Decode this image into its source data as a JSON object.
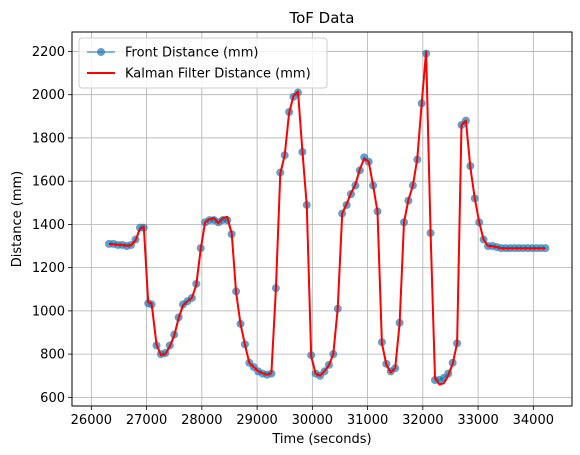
{
  "chart_data": {
    "type": "line",
    "title": "ToF Data",
    "xlabel": "Time (seconds)",
    "ylabel": "Distance (mm)",
    "xlim": [
      25650,
      34700
    ],
    "ylim": [
      560,
      2290
    ],
    "xticks": [
      26000,
      27000,
      28000,
      29000,
      30000,
      31000,
      32000,
      33000,
      34000
    ],
    "yticks": [
      600,
      800,
      1000,
      1200,
      1400,
      1600,
      1800,
      2000,
      2200
    ],
    "grid": true,
    "legend_position": "top-left",
    "series": [
      {
        "name": "Front Distance (mm)",
        "style": "line-markers",
        "color": "#1f77b4",
        "x": [
          26320,
          26400,
          26480,
          26560,
          26640,
          26720,
          26800,
          26880,
          26950,
          27030,
          27090,
          27180,
          27260,
          27340,
          27420,
          27500,
          27580,
          27660,
          27740,
          27820,
          27900,
          27980,
          28060,
          28140,
          28220,
          28300,
          28380,
          28460,
          28540,
          28620,
          28700,
          28780,
          28860,
          28940,
          29020,
          29100,
          29180,
          29260,
          29340,
          29420,
          29500,
          29580,
          29660,
          29740,
          29820,
          29900,
          29980,
          30060,
          30140,
          30220,
          30300,
          30380,
          30460,
          30540,
          30620,
          30700,
          30780,
          30860,
          30940,
          31020,
          31100,
          31180,
          31260,
          31340,
          31420,
          31500,
          31580,
          31660,
          31740,
          31820,
          31900,
          31980,
          32060,
          32140,
          32220,
          32300,
          32380,
          32460,
          32540,
          32620,
          32700,
          32780,
          32860,
          32940,
          33020,
          33100,
          33180,
          33260,
          33340,
          33420,
          33500,
          33580,
          33660,
          33740,
          33820,
          33900,
          33980,
          34060,
          34140,
          34220
        ],
        "y": [
          1310,
          1310,
          1305,
          1305,
          1300,
          1305,
          1330,
          1385,
          1385,
          1035,
          1030,
          840,
          800,
          805,
          840,
          890,
          970,
          1030,
          1045,
          1060,
          1125,
          1290,
          1410,
          1420,
          1420,
          1410,
          1420,
          1420,
          1355,
          1090,
          940,
          845,
          760,
          740,
          720,
          710,
          705,
          710,
          1105,
          1640,
          1720,
          1920,
          1990,
          2010,
          1735,
          1490,
          795,
          710,
          700,
          720,
          750,
          800,
          1010,
          1450,
          1490,
          1540,
          1580,
          1650,
          1710,
          1690,
          1580,
          1460,
          855,
          755,
          720,
          735,
          945,
          1410,
          1510,
          1580,
          1700,
          1960,
          2190,
          1360,
          680,
          680,
          690,
          710,
          760,
          850,
          1860,
          1880,
          1670,
          1520,
          1410,
          1330,
          1300,
          1300,
          1295,
          1290,
          1290,
          1290,
          1290,
          1290,
          1290,
          1290,
          1290,
          1290,
          1290,
          1290
        ]
      },
      {
        "name": "Kalman Filter Distance (mm)",
        "style": "line",
        "color": "#ff0000",
        "x": [
          26320,
          26400,
          26480,
          26560,
          26640,
          26720,
          26800,
          26880,
          26950,
          27030,
          27090,
          27180,
          27260,
          27340,
          27420,
          27500,
          27580,
          27660,
          27740,
          27820,
          27900,
          27980,
          28060,
          28140,
          28220,
          28300,
          28380,
          28460,
          28540,
          28620,
          28700,
          28780,
          28860,
          28940,
          29020,
          29100,
          29180,
          29260,
          29340,
          29420,
          29500,
          29580,
          29660,
          29740,
          29820,
          29900,
          29980,
          30060,
          30140,
          30220,
          30300,
          30380,
          30460,
          30540,
          30620,
          30700,
          30780,
          30860,
          30940,
          31020,
          31100,
          31180,
          31260,
          31340,
          31420,
          31500,
          31580,
          31660,
          31740,
          31820,
          31900,
          31980,
          32060,
          32140,
          32220,
          32300,
          32380,
          32460,
          32540,
          32620,
          32700,
          32780,
          32860,
          32940,
          33020,
          33100,
          33180,
          33260,
          33340,
          33420,
          33500,
          33580,
          33660,
          33740,
          33820,
          33900,
          33980,
          34060,
          34140,
          34220
        ],
        "y": [
          1310,
          1308,
          1306,
          1305,
          1302,
          1304,
          1325,
          1380,
          1390,
          1040,
          1035,
          845,
          795,
          800,
          835,
          885,
          965,
          1025,
          1045,
          1060,
          1120,
          1285,
          1410,
          1425,
          1430,
          1405,
          1430,
          1435,
          1360,
          1085,
          940,
          845,
          760,
          740,
          722,
          712,
          705,
          712,
          1100,
          1635,
          1720,
          1915,
          1995,
          2015,
          1740,
          1485,
          790,
          710,
          700,
          722,
          748,
          800,
          1010,
          1450,
          1495,
          1545,
          1585,
          1655,
          1705,
          1690,
          1580,
          1460,
          850,
          750,
          715,
          735,
          940,
          1410,
          1515,
          1580,
          1705,
          1960,
          2200,
          1360,
          690,
          660,
          665,
          700,
          755,
          850,
          1860,
          1880,
          1665,
          1520,
          1410,
          1330,
          1300,
          1300,
          1295,
          1290,
          1290,
          1290,
          1290,
          1290,
          1290,
          1290,
          1290,
          1290,
          1290,
          1290
        ]
      }
    ]
  }
}
